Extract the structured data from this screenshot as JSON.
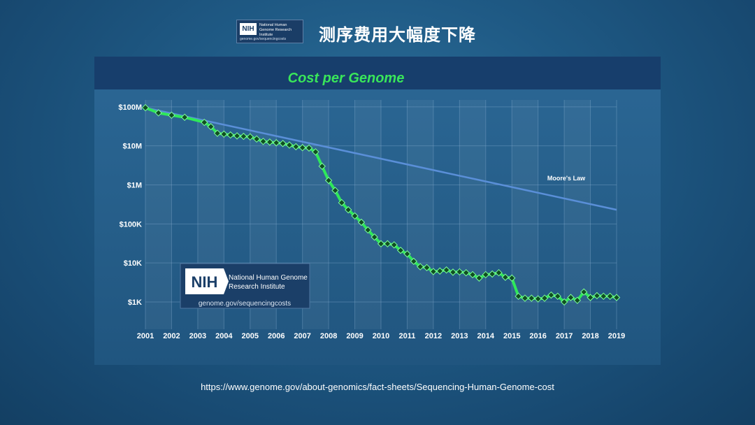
{
  "header": {
    "logo": {
      "abbr": "NIH",
      "org": "National Human Genome Research Institute",
      "url": "genome.gov/sequencingcosts"
    },
    "title": "测序费用大幅度下降"
  },
  "source_url": "https://www.genome.gov/about-genomics/fact-sheets/Sequencing-Human-Genome-cost",
  "colors": {
    "cost_line": "#2ee85a",
    "marker_fill": "#0f4f22",
    "moores_line": "#5a8fd8",
    "title_green": "#39e65a"
  },
  "chart_data": {
    "type": "line",
    "title": "Cost per Genome",
    "xlabel": "",
    "ylabel": "",
    "y_scale": "log",
    "ylim": [
      200,
      150000000
    ],
    "xlim": [
      2001,
      2019
    ],
    "x_ticks": [
      "2001",
      "2002",
      "2003",
      "2004",
      "2005",
      "2006",
      "2007",
      "2008",
      "2009",
      "2010",
      "2011",
      "2012",
      "2013",
      "2014",
      "2015",
      "2016",
      "2017",
      "2018",
      "2019"
    ],
    "y_ticks": [
      {
        "value": 100000000,
        "label": "$100M"
      },
      {
        "value": 10000000,
        "label": "$10M"
      },
      {
        "value": 1000000,
        "label": "$1M"
      },
      {
        "value": 100000,
        "label": "$100K"
      },
      {
        "value": 10000,
        "label": "$10K"
      },
      {
        "value": 1000,
        "label": "$1K"
      }
    ],
    "grid": true,
    "series": [
      {
        "name": "",
        "points": [
          [
            2001.0,
            95000000
          ],
          [
            2001.5,
            70000000
          ],
          [
            2002.0,
            61000000
          ],
          [
            2002.5,
            54000000
          ],
          [
            2003.25,
            40000000
          ],
          [
            2003.5,
            31000000
          ],
          [
            2003.75,
            21000000
          ],
          [
            2004.0,
            20000000
          ],
          [
            2004.25,
            19000000
          ],
          [
            2004.5,
            18000000
          ],
          [
            2004.75,
            17500000
          ],
          [
            2005.0,
            17000000
          ],
          [
            2005.25,
            15000000
          ],
          [
            2005.5,
            13000000
          ],
          [
            2005.75,
            12500000
          ],
          [
            2006.0,
            12000000
          ],
          [
            2006.25,
            11500000
          ],
          [
            2006.5,
            10500000
          ],
          [
            2006.75,
            9500000
          ],
          [
            2007.0,
            9000000
          ],
          [
            2007.25,
            8800000
          ],
          [
            2007.5,
            7000000
          ],
          [
            2007.75,
            3000000
          ],
          [
            2008.0,
            1300000
          ],
          [
            2008.25,
            720000
          ],
          [
            2008.5,
            350000
          ],
          [
            2008.75,
            230000
          ],
          [
            2009.0,
            160000
          ],
          [
            2009.25,
            110000
          ],
          [
            2009.5,
            70000
          ],
          [
            2009.75,
            46000
          ],
          [
            2010.0,
            31000
          ],
          [
            2010.25,
            31000
          ],
          [
            2010.5,
            29000
          ],
          [
            2010.75,
            21000
          ],
          [
            2011.0,
            17000
          ],
          [
            2011.25,
            11000
          ],
          [
            2011.5,
            8000
          ],
          [
            2011.75,
            7600
          ],
          [
            2012.0,
            6000
          ],
          [
            2012.25,
            6200
          ],
          [
            2012.5,
            6600
          ],
          [
            2012.75,
            5800
          ],
          [
            2013.0,
            5900
          ],
          [
            2013.25,
            5600
          ],
          [
            2013.5,
            5000
          ],
          [
            2013.75,
            4100
          ],
          [
            2014.0,
            5000
          ],
          [
            2014.25,
            5200
          ],
          [
            2014.5,
            5600
          ],
          [
            2014.75,
            4300
          ],
          [
            2015.0,
            4100
          ],
          [
            2015.25,
            1400
          ],
          [
            2015.5,
            1250
          ],
          [
            2015.75,
            1250
          ],
          [
            2016.0,
            1200
          ],
          [
            2016.25,
            1250
          ],
          [
            2016.5,
            1500
          ],
          [
            2016.75,
            1400
          ],
          [
            2017.0,
            1000
          ],
          [
            2017.25,
            1300
          ],
          [
            2017.5,
            1100
          ],
          [
            2017.75,
            1800
          ],
          [
            2018.0,
            1300
          ],
          [
            2018.25,
            1450
          ],
          [
            2018.5,
            1400
          ],
          [
            2018.75,
            1400
          ],
          [
            2019.0,
            1300
          ]
        ]
      },
      {
        "name": "Moore's Law",
        "points": [
          [
            2001.0,
            95000000
          ],
          [
            2019.0,
            230000
          ]
        ]
      }
    ]
  }
}
